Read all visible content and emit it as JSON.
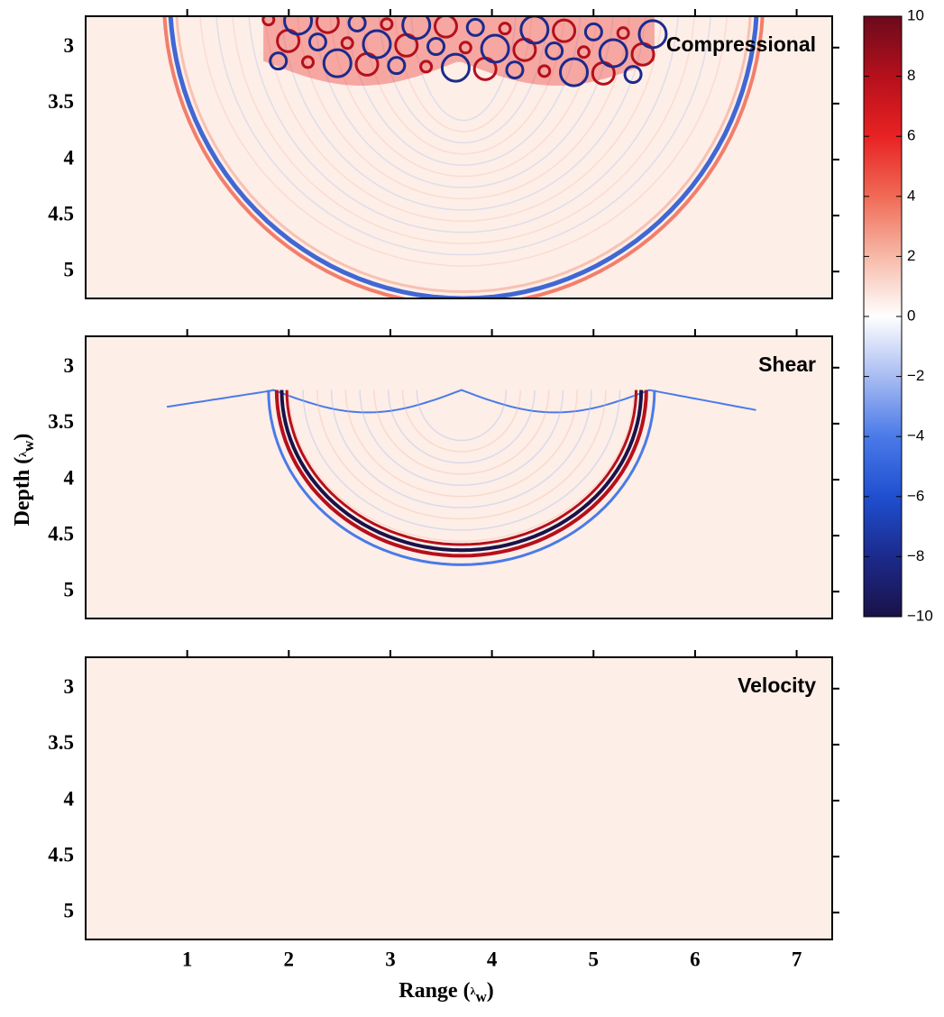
{
  "chart_data": {
    "type": "heatmap",
    "background": "#fdeee7",
    "xlim": [
      0,
      7.35
    ],
    "xticks": [
      1,
      2,
      3,
      4,
      5,
      6,
      7
    ],
    "ylim": [
      2.72,
      5.24
    ],
    "yticks": [
      3,
      3.5,
      4,
      4.5,
      5
    ],
    "xlabel": [
      "Range (",
      "λ",
      "w",
      ")"
    ],
    "ylabel": [
      "Depth (",
      "λ",
      "w",
      ")"
    ],
    "panels": [
      {
        "title": "Compressional"
      },
      {
        "title": "Shear"
      },
      {
        "title": "Velocity"
      }
    ],
    "colorbar": {
      "clim": [
        -10,
        10
      ],
      "ticks": [
        10,
        8,
        6,
        4,
        2,
        0,
        {
          "value": -2,
          "label": "−2"
        },
        {
          "value": -4,
          "label": "−4"
        },
        {
          "value": -6,
          "label": "−6"
        },
        {
          "value": -8,
          "label": "−8"
        },
        {
          "value": -10,
          "label": "−10"
        }
      ],
      "colormap": [
        "#1a1248",
        "#1c2a8c",
        "#1f4fd0",
        "#4a7ae8",
        "#a8bcf2",
        "#ffffff",
        "#f7b9a8",
        "#f06a55",
        "#e82222",
        "#b5101c",
        "#6b0a1c"
      ]
    }
  }
}
